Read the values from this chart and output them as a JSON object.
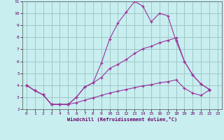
{
  "xlabel": "Windchill (Refroidissement éolien,°C)",
  "xlim": [
    -0.5,
    23.5
  ],
  "ylim": [
    2,
    11
  ],
  "xticks": [
    0,
    1,
    2,
    3,
    4,
    5,
    6,
    7,
    8,
    9,
    10,
    11,
    12,
    13,
    14,
    15,
    16,
    17,
    18,
    19,
    20,
    21,
    22,
    23
  ],
  "yticks": [
    2,
    3,
    4,
    5,
    6,
    7,
    8,
    9,
    10,
    11
  ],
  "bg_color": "#c8eef0",
  "grid_color": "#a0c8c8",
  "line_color": "#993399",
  "line1_x": [
    0,
    1,
    2,
    3,
    4,
    5,
    6,
    7,
    8,
    9,
    10,
    11,
    12,
    13,
    14,
    15,
    16,
    17,
    18,
    19,
    20,
    21,
    22
  ],
  "line1_y": [
    4.0,
    3.55,
    3.2,
    2.4,
    2.4,
    2.4,
    3.0,
    3.85,
    4.2,
    5.85,
    7.85,
    9.2,
    10.1,
    11.0,
    10.6,
    9.3,
    10.0,
    9.8,
    7.7,
    6.0,
    4.85,
    4.1,
    3.65
  ],
  "line2_x": [
    0,
    1,
    2,
    3,
    4,
    5,
    6,
    7,
    8,
    9,
    10,
    11,
    12,
    13,
    14,
    15,
    16,
    17,
    18,
    19,
    20,
    21,
    22
  ],
  "line2_y": [
    4.0,
    3.55,
    3.2,
    2.4,
    2.4,
    2.4,
    3.0,
    3.85,
    4.2,
    4.65,
    5.4,
    5.75,
    6.15,
    6.65,
    7.05,
    7.25,
    7.55,
    7.75,
    7.95,
    6.0,
    4.85,
    4.1,
    3.65
  ],
  "line3_x": [
    0,
    1,
    2,
    3,
    4,
    5,
    6,
    7,
    8,
    9,
    10,
    11,
    12,
    13,
    14,
    15,
    16,
    17,
    18,
    19,
    20,
    21,
    22
  ],
  "line3_y": [
    4.0,
    3.55,
    3.2,
    2.4,
    2.4,
    2.4,
    2.55,
    2.75,
    2.95,
    3.15,
    3.35,
    3.5,
    3.65,
    3.8,
    3.95,
    4.05,
    4.2,
    4.3,
    4.45,
    3.75,
    3.35,
    3.15,
    3.6
  ]
}
